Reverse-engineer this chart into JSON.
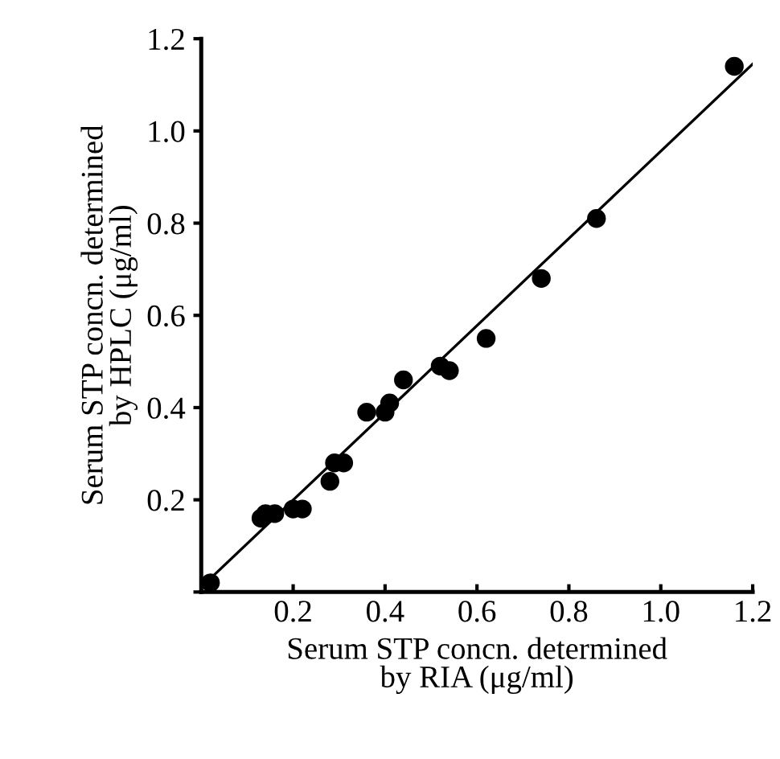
{
  "chart_data": {
    "type": "scatter",
    "xlabel": "Serum STP concn. determined\nby RIA (μg/ml)",
    "ylabel": "Serum STP concn. determined\nby HPLC (μg/ml)",
    "series": [
      {
        "color": "#000000",
        "marker": "circle",
        "x": [
          0.02,
          0.13,
          0.14,
          0.16,
          0.2,
          0.22,
          0.28,
          0.29,
          0.31,
          0.36,
          0.4,
          0.41,
          0.44,
          0.52,
          0.54,
          0.62,
          0.74,
          0.86,
          1.16
        ],
        "values": [
          0.02,
          0.16,
          0.17,
          0.17,
          0.18,
          0.18,
          0.24,
          0.28,
          0.28,
          0.39,
          0.39,
          0.41,
          0.46,
          0.49,
          0.48,
          0.55,
          0.68,
          0.81,
          1.14
        ]
      },
      {
        "type": "line",
        "color": "#000000",
        "marker": "none",
        "x": [
          0.01,
          1.2
        ],
        "values": [
          0.02,
          1.145
        ]
      }
    ],
    "xlim": [
      0,
      1.2
    ],
    "ylim": [
      0,
      1.2
    ],
    "xticks": [
      {
        "value": 0,
        "label": null
      },
      0.2,
      0.4,
      0.6,
      0.8,
      {
        "value": 1,
        "label": "1.0"
      },
      1.2
    ],
    "yticks": [
      {
        "value": 0,
        "label": null
      },
      0.2,
      0.4,
      0.6,
      0.8,
      {
        "value": 1,
        "label": "1.0"
      },
      1.2
    ],
    "grid": false,
    "legend": false
  }
}
